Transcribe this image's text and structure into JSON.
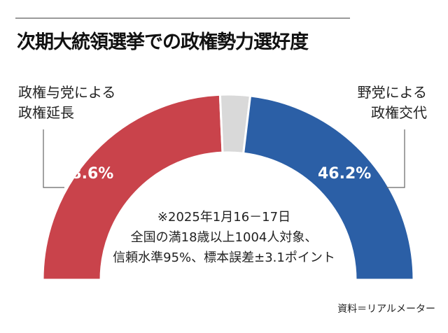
{
  "title": "次期大統領選挙での政権勢力選好度",
  "chart_data": {
    "type": "pie",
    "variant": "half-donut",
    "title": "次期大統領選挙での政権勢力選好度",
    "slices": [
      {
        "label": "政権与党による政権延長",
        "label_lines": [
          "政権与党による",
          "政権延長"
        ],
        "value": 48.6,
        "display": "48.6%",
        "color": "#c9434b"
      },
      {
        "label": "",
        "value": 5.2,
        "display": "",
        "color": "#d9d9d9"
      },
      {
        "label": "野党による政権交代",
        "label_lines": [
          "野党による",
          "政権交代"
        ],
        "value": 46.2,
        "display": "46.2%",
        "color": "#2b5fa6"
      }
    ],
    "note_lines": [
      "※2025年1月16－17日",
      "全国の満18歳以上1004人対象、",
      "信頼水準95%、標本誤差±3.1ポイント"
    ],
    "source": "資料＝リアルメーター"
  }
}
